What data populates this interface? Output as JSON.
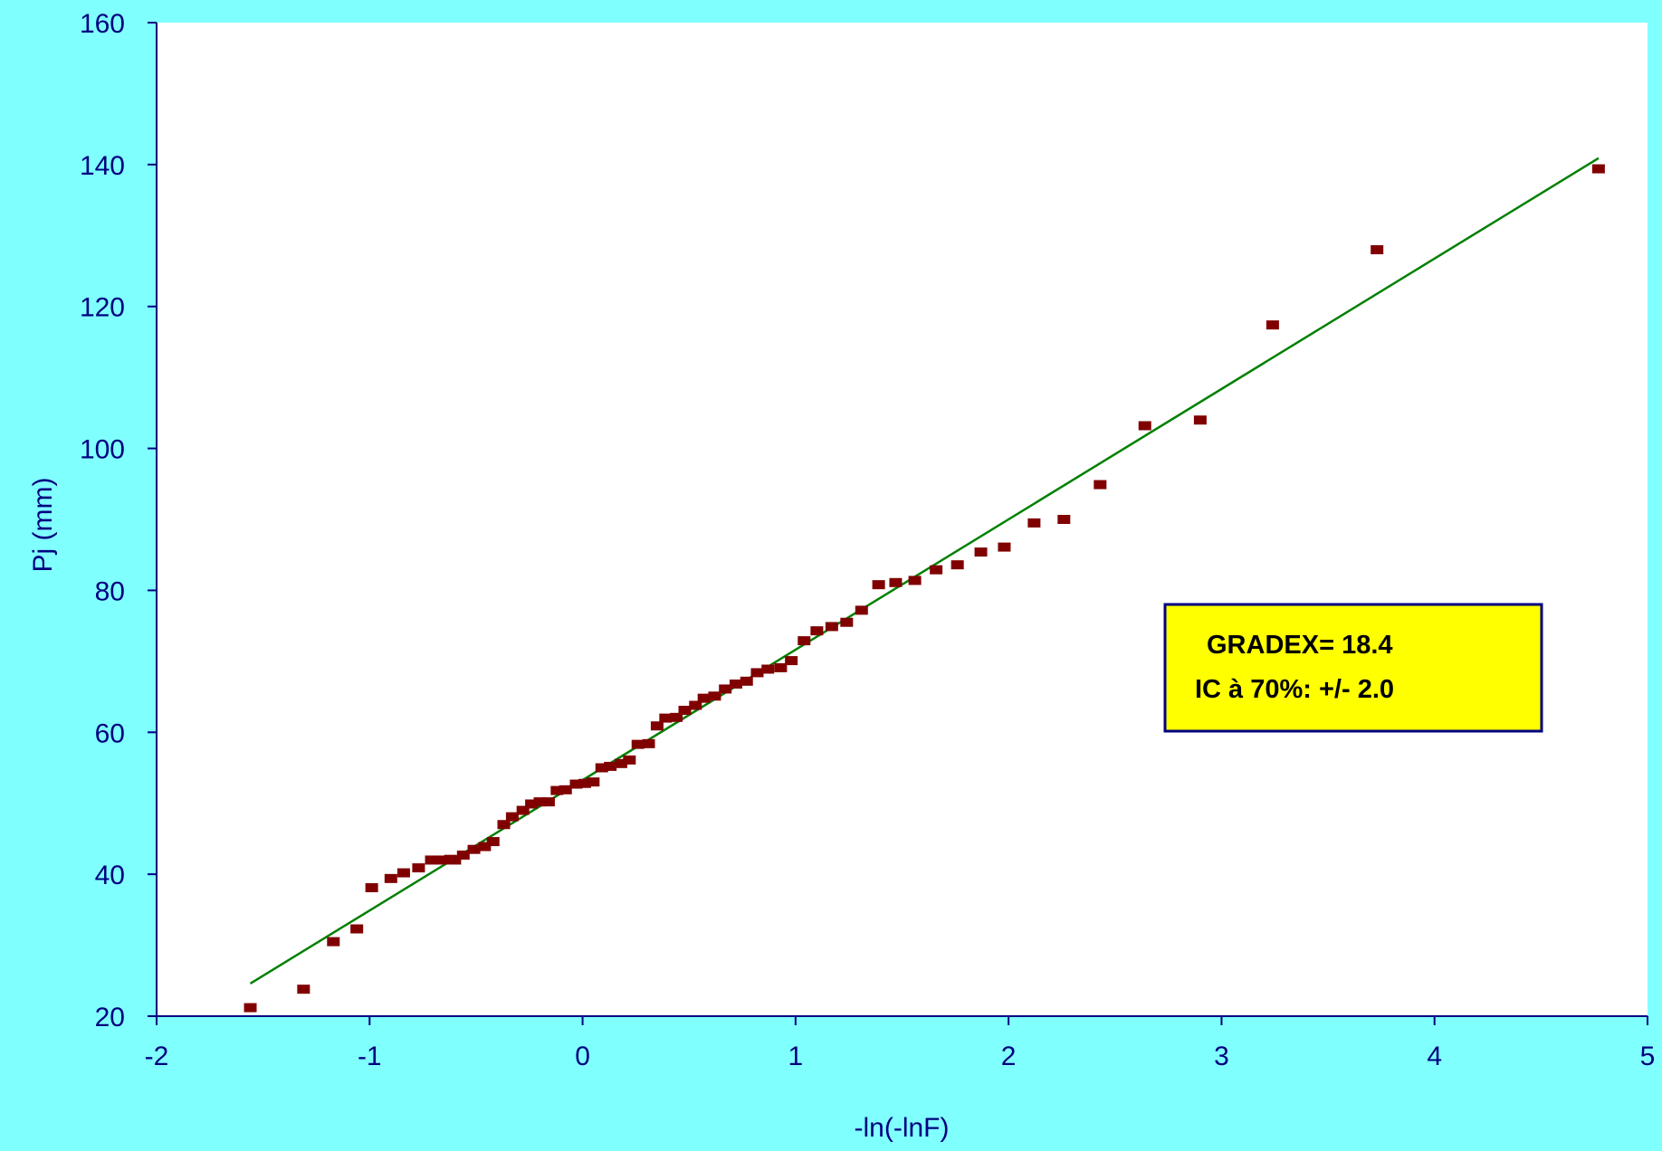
{
  "chart_data": {
    "type": "scatter",
    "title": "",
    "xlabel": "-ln(-lnF)",
    "ylabel": "Pj (mm)",
    "xlim": [
      -2,
      5
    ],
    "ylim": [
      20,
      160
    ],
    "xticks": [
      "-2",
      "-1",
      "0",
      "1",
      "2",
      "3",
      "4",
      "5"
    ],
    "yticks": [
      "20",
      "40",
      "60",
      "80",
      "100",
      "120",
      "140",
      "160"
    ],
    "grid": false,
    "plot_background": "#ffffff",
    "page_background": "#80ffff",
    "axis_color": "#000080",
    "series": [
      {
        "kind": "points",
        "color": "#800000",
        "x": [
          -1.56,
          -1.31,
          -1.17,
          -1.06,
          -0.99,
          -0.9,
          -0.84,
          -0.77,
          -0.71,
          -0.66,
          -0.62,
          -0.6,
          -0.56,
          -0.51,
          -0.46,
          -0.42,
          -0.37,
          -0.33,
          -0.28,
          -0.24,
          -0.2,
          -0.16,
          -0.12,
          -0.08,
          -0.03,
          0.01,
          0.05,
          0.09,
          0.13,
          0.18,
          0.22,
          0.26,
          0.31,
          0.35,
          0.39,
          0.44,
          0.48,
          0.53,
          0.57,
          0.62,
          0.67,
          0.72,
          0.77,
          0.82,
          0.87,
          0.93,
          0.98,
          1.04,
          1.1,
          1.17,
          1.24,
          1.31,
          1.39,
          1.47,
          1.56,
          1.66,
          1.76,
          1.87,
          1.98,
          2.12,
          2.26,
          2.43,
          2.64,
          2.9,
          3.24,
          3.73,
          4.77
        ],
        "y": [
          21.2,
          23.8,
          30.5,
          32.3,
          38.1,
          39.4,
          40.2,
          40.9,
          42,
          42,
          42.1,
          42,
          42.7,
          43.5,
          43.9,
          44.6,
          47,
          48.1,
          49,
          49.9,
          50.2,
          50.2,
          51.8,
          51.9,
          52.7,
          52.8,
          53,
          55,
          55.2,
          55.6,
          56.1,
          58.3,
          58.4,
          60.9,
          62,
          62.1,
          63.1,
          63.8,
          64.8,
          65.1,
          66.1,
          66.8,
          67.2,
          68.4,
          68.9,
          69.1,
          70.1,
          72.9,
          74.3,
          74.9,
          75.5,
          77.2,
          80.8,
          81.1,
          81.4,
          82.9,
          83.6,
          85.4,
          86.1,
          89.5,
          90,
          94.9,
          103.2,
          104,
          117.4,
          128,
          139.4
        ]
      },
      {
        "kind": "fit-line",
        "color": "#008000",
        "x": [
          -1.56,
          4.77
        ],
        "y": [
          24.6,
          140.9
        ]
      }
    ],
    "annotations": [
      "GRADEX= 18.4",
      "IC à 70%: +/- 2.0"
    ],
    "annotation_colors": {
      "fill": "#ffff00",
      "border": "#000080"
    }
  }
}
